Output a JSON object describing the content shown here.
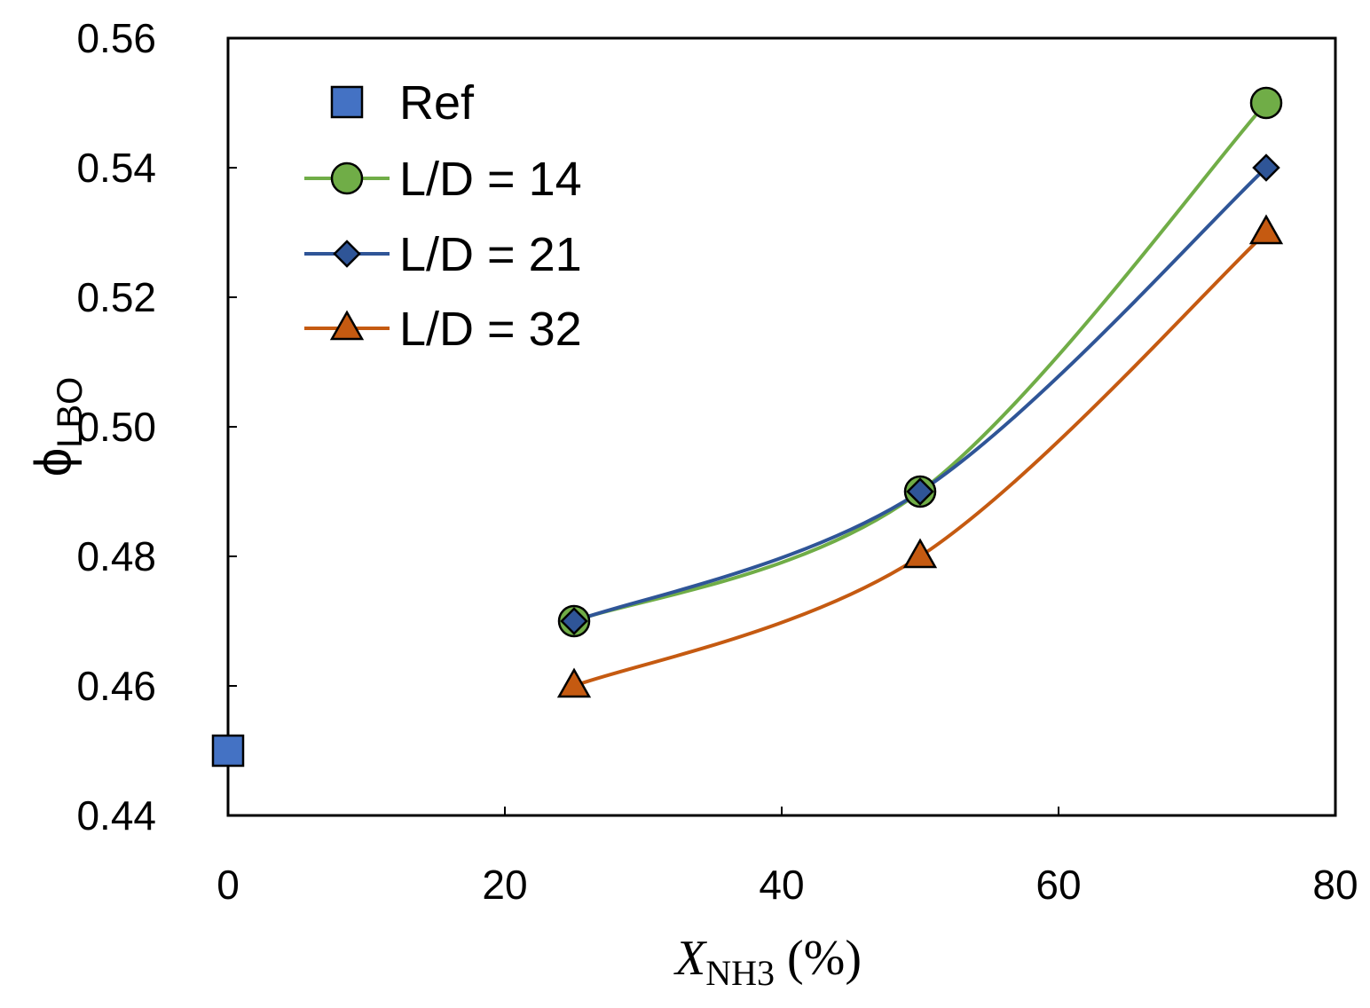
{
  "chart_data": {
    "type": "line",
    "title": "",
    "xlabel": {
      "main": "X",
      "sub": "NH3",
      "suffix": " (%)"
    },
    "ylabel": {
      "main": "ϕ",
      "sub": "LBO"
    },
    "xlim": [
      0,
      80
    ],
    "ylim": [
      0.44,
      0.56
    ],
    "xticks": [
      0,
      20,
      40,
      60,
      80
    ],
    "xtick_labels": [
      "0",
      "20",
      "40",
      "60",
      "80"
    ],
    "yticks": [
      0.44,
      0.46,
      0.48,
      0.5,
      0.52,
      0.54,
      0.56
    ],
    "ytick_labels": [
      "0.44",
      "0.46",
      "0.48",
      "0.50",
      "0.52",
      "0.54",
      "0.56"
    ],
    "grid": false,
    "legend_position": "top-left",
    "series": [
      {
        "name": "Ref",
        "marker": "square",
        "line": false,
        "color": "#4472C4",
        "x": [
          0
        ],
        "y": [
          0.45
        ]
      },
      {
        "name": "L/D = 14",
        "marker": "circle",
        "line": true,
        "color": "#70AD47",
        "x": [
          25,
          50,
          75
        ],
        "y": [
          0.47,
          0.49,
          0.55
        ]
      },
      {
        "name": "L/D = 21",
        "marker": "diamond",
        "line": true,
        "color": "#2F5597",
        "x": [
          25,
          50,
          75
        ],
        "y": [
          0.47,
          0.49,
          0.54
        ]
      },
      {
        "name": "L/D = 32",
        "marker": "triangle",
        "line": true,
        "color": "#C55A11",
        "x": [
          25,
          50,
          75
        ],
        "y": [
          0.46,
          0.48,
          0.53
        ]
      }
    ]
  }
}
